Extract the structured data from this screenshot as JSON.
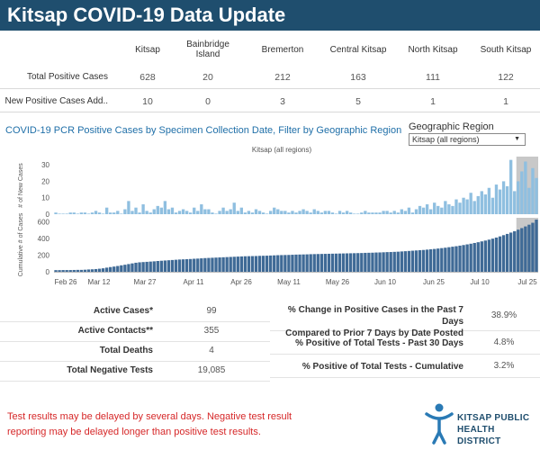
{
  "title": "Kitsap COVID-19 Data Update",
  "summary": {
    "columns": [
      "Kitsap",
      "Bainbridge Island",
      "Bremerton",
      "Central Kitsap",
      "North Kitsap",
      "South Kitsap"
    ],
    "column_lines": [
      [
        "Kitsap"
      ],
      [
        "Bainbridge",
        "Island"
      ],
      [
        "Bremerton"
      ],
      [
        "Central Kitsap"
      ],
      [
        "North Kitsap"
      ],
      [
        "South Kitsap"
      ]
    ],
    "rows": [
      {
        "label": "Total Positive Cases",
        "values": [
          "628",
          "20",
          "212",
          "163",
          "111",
          "122"
        ]
      },
      {
        "label": "New Positive Cases Add..",
        "values": [
          "10",
          "0",
          "3",
          "5",
          "1",
          "1"
        ]
      }
    ]
  },
  "chart_header": {
    "title": "COVID-19 PCR Positive Cases by Specimen Collection Date, Filter by Geographic Region",
    "filter_label": "Geographic Region",
    "filter_value": "Kitsap (all regions)"
  },
  "chart_data": {
    "type": "bar",
    "subtitle": "Kitsap (all regions)",
    "x_ticks": [
      "Feb 26",
      "Mar 12",
      "Mar 27",
      "Apr 11",
      "Apr 26",
      "May 11",
      "May 26",
      "Jun 10",
      "Jun 25",
      "Jul 10",
      "Jul 25"
    ],
    "panels": [
      {
        "ylabel": "# of New Cases",
        "yticks": [
          0,
          10,
          20,
          30
        ],
        "ylim": [
          0,
          35
        ],
        "values": [
          1,
          0,
          0,
          0,
          1,
          1,
          0,
          1,
          1,
          0,
          1,
          2,
          1,
          0,
          4,
          1,
          1,
          2,
          0,
          3,
          8,
          2,
          4,
          1,
          6,
          2,
          1,
          3,
          5,
          4,
          8,
          3,
          4,
          1,
          2,
          3,
          2,
          1,
          4,
          2,
          6,
          3,
          3,
          1,
          0,
          2,
          4,
          2,
          3,
          7,
          2,
          4,
          1,
          2,
          1,
          3,
          2,
          1,
          0,
          2,
          4,
          3,
          2,
          2,
          1,
          2,
          1,
          2,
          3,
          2,
          1,
          3,
          2,
          1,
          2,
          2,
          1,
          0,
          2,
          1,
          2,
          1,
          0,
          0,
          1,
          2,
          1,
          1,
          1,
          1,
          2,
          2,
          1,
          2,
          1,
          3,
          2,
          4,
          1,
          3,
          5,
          4,
          6,
          3,
          7,
          5,
          4,
          8,
          6,
          5,
          9,
          7,
          10,
          9,
          13,
          8,
          11,
          14,
          12,
          16,
          10,
          18,
          15,
          20,
          17,
          33,
          14,
          20,
          26,
          32,
          16,
          28,
          22
        ],
        "highlight_last": 6
      },
      {
        "ylabel": "Cumulative # of Cases",
        "yticks": [
          0,
          200,
          400,
          600
        ],
        "ylim": [
          0,
          650
        ],
        "values": [
          20,
          20,
          21,
          21,
          21,
          22,
          23,
          23,
          25,
          28,
          30,
          33,
          37,
          42,
          50,
          57,
          63,
          70,
          78,
          85,
          93,
          101,
          109,
          114,
          117,
          120,
          123,
          126,
          130,
          133,
          136,
          139,
          142,
          145,
          148,
          150,
          152,
          154,
          157,
          159,
          162,
          165,
          167,
          169,
          171,
          173,
          175,
          177,
          179,
          181,
          183,
          185,
          187,
          188,
          189,
          190,
          192,
          193,
          194,
          196,
          198,
          200,
          201,
          202,
          203,
          205,
          207,
          208,
          209,
          210,
          212,
          213,
          214,
          215,
          216,
          217,
          218,
          219,
          220,
          221,
          222,
          223,
          224,
          225,
          226,
          228,
          229,
          230,
          232,
          233,
          235,
          237,
          238,
          240,
          242,
          245,
          248,
          251,
          254,
          257,
          260,
          263,
          267,
          271,
          275,
          280,
          285,
          290,
          296,
          302,
          308,
          315,
          322,
          330,
          338,
          347,
          356,
          366,
          376,
          387,
          399,
          412,
          426,
          441,
          456,
          472,
          489,
          507,
          526,
          546,
          567,
          590,
          628
        ],
        "highlight_last": 6
      }
    ]
  },
  "stats_left": [
    {
      "label": "Active Cases*",
      "value": "99"
    },
    {
      "label": "Active Contacts**",
      "value": "355"
    },
    {
      "label": "Total Deaths",
      "value": "4"
    },
    {
      "label": "Total Negative Tests",
      "value": "19,085"
    }
  ],
  "stats_right": [
    {
      "label_lines": [
        "% Change in Positive Cases in the Past 7 Days",
        "Compared to Prior 7 Days by Date Posted"
      ],
      "value": "38.9%"
    },
    {
      "label_lines": [
        "% Positive of Total Tests - Past 30 Days"
      ],
      "value": "4.8%"
    },
    {
      "label_lines": [
        "% Positive of Total Tests - Cumulative"
      ],
      "value": "3.2%"
    }
  ],
  "note_lines": [
    "Test results may be delayed by several days. Negative test result",
    "reporting may be delayed longer than positive test results."
  ],
  "logo": {
    "line1": "KITSAP PUBLIC",
    "line2": "HEALTH DISTRICT"
  },
  "colors": {
    "title_bg": "#1f4e6e",
    "new_cases_bar": "#8fbfe0",
    "cumulative_bar": "#3f6a96",
    "highlight_band": "#c8c8c8",
    "note_red": "#d62728",
    "chart_title_blue": "#1f6fa8"
  }
}
